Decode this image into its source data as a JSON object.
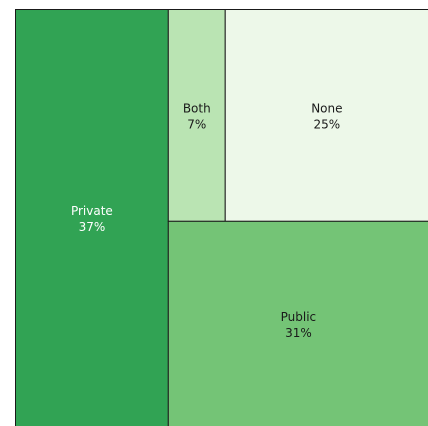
{
  "chart_data": {
    "type": "treemap",
    "title": "",
    "items": [
      {
        "name": "Private",
        "value": 37,
        "label": "37%",
        "color": "#31a354",
        "text_color": "#ffffff"
      },
      {
        "name": "Public",
        "value": 31,
        "label": "31%",
        "color": "#74c476",
        "text_color": "#1a1a1a"
      },
      {
        "name": "None",
        "value": 25,
        "label": "25%",
        "color": "#edf8e9",
        "text_color": "#1a1a1a"
      },
      {
        "name": "Both",
        "value": 7,
        "label": "7%",
        "color": "#bae4b3",
        "text_color": "#1a1a1a"
      }
    ]
  }
}
